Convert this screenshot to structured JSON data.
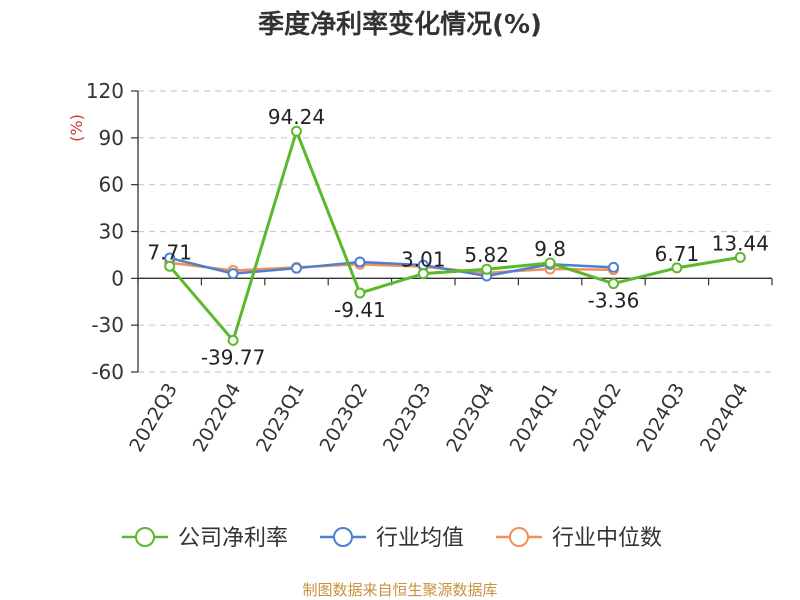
{
  "page": {
    "title": "季度净利率变化情况(%)",
    "source": "制图数据来自恒生聚源数据库"
  },
  "chart_data": {
    "type": "line",
    "title": "季度净利率变化情况(%)",
    "ylabel": "(%)",
    "ylim": [
      -60,
      120
    ],
    "yticks": [
      120,
      90,
      60,
      30,
      0,
      -30,
      -60
    ],
    "grid": true,
    "legend_position": "bottom",
    "categories": [
      "2022Q3",
      "2022Q4",
      "2023Q1",
      "2023Q2",
      "2023Q3",
      "2023Q4",
      "2024Q1",
      "2024Q2",
      "2024Q3",
      "2024Q4"
    ],
    "series": [
      {
        "name": "公司净利率",
        "color": "#5ab82a",
        "values": [
          7.71,
          -39.77,
          94.24,
          -9.41,
          3.01,
          5.82,
          9.8,
          -3.36,
          6.71,
          13.44
        ],
        "labels": [
          "7.71",
          "-39.77",
          "94.24",
          "-9.41",
          "3.01",
          "5.82",
          "9.8",
          "-3.36",
          "6.71",
          "13.44"
        ]
      },
      {
        "name": "行业均值",
        "color": "#4f7fcf",
        "values": [
          13.0,
          3.0,
          6.5,
          10.5,
          8.5,
          1.5,
          9.0,
          7.0,
          null,
          null
        ]
      },
      {
        "name": "行业中位数",
        "color": "#f0905a",
        "values": [
          10.0,
          5.0,
          7.0,
          9.0,
          7.5,
          3.5,
          6.0,
          5.5,
          null,
          null
        ]
      }
    ]
  }
}
